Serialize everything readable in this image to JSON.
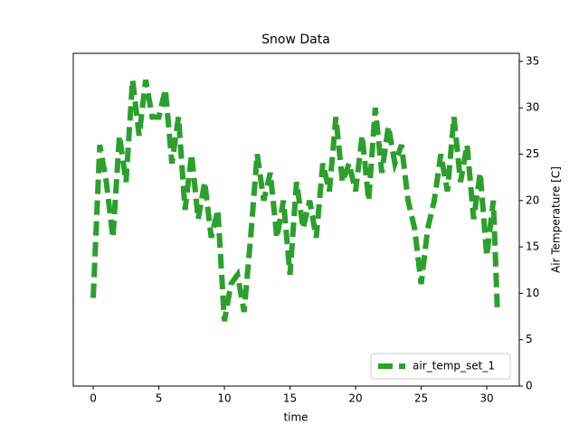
{
  "chart_data": {
    "type": "line",
    "title": "Snow Data",
    "x_label": "time",
    "y_label": "Air Temperature [C]",
    "x": [
      0,
      0.5,
      1,
      1.5,
      2,
      2.5,
      3,
      3.5,
      4,
      4.5,
      5,
      5.5,
      6,
      6.5,
      7,
      7.5,
      8,
      8.5,
      9,
      9.5,
      10,
      10.5,
      11,
      11.5,
      12,
      12.5,
      13,
      13.5,
      14,
      14.5,
      15,
      15.5,
      16,
      16.5,
      17,
      17.5,
      18,
      18.5,
      19,
      19.5,
      20,
      20.5,
      21,
      21.5,
      22,
      22.5,
      23,
      23.5,
      24,
      24.5,
      25,
      25.5,
      26,
      26.5,
      27,
      27.5,
      28,
      28.5,
      29,
      29.5,
      30,
      30.5,
      30.8
    ],
    "series": [
      {
        "name": "air_temp_set_1",
        "color": "#2ca02c",
        "values": [
          9.5,
          26,
          22,
          16,
          27,
          22,
          33,
          27,
          33,
          29,
          29,
          32,
          24,
          29,
          19,
          25,
          18,
          22,
          16,
          19,
          7,
          11,
          12,
          8,
          16,
          25,
          20,
          23,
          16,
          20,
          12,
          22,
          17,
          20,
          16,
          24,
          21,
          29,
          22,
          24,
          21,
          27,
          20,
          30,
          23,
          28,
          24,
          26,
          20,
          17,
          11,
          17,
          20,
          25,
          21,
          29,
          22,
          26,
          18,
          23,
          14,
          20,
          8.5
        ]
      }
    ],
    "xlim": [
      -1.52,
      32.48
    ],
    "ylim": [
      0,
      35.87
    ],
    "xticks": [
      0,
      5,
      10,
      15,
      20,
      25,
      30
    ],
    "yticks": [
      0,
      5,
      10,
      15,
      20,
      25,
      30,
      35
    ],
    "legend": "lower right",
    "y_axis_side": "right"
  }
}
